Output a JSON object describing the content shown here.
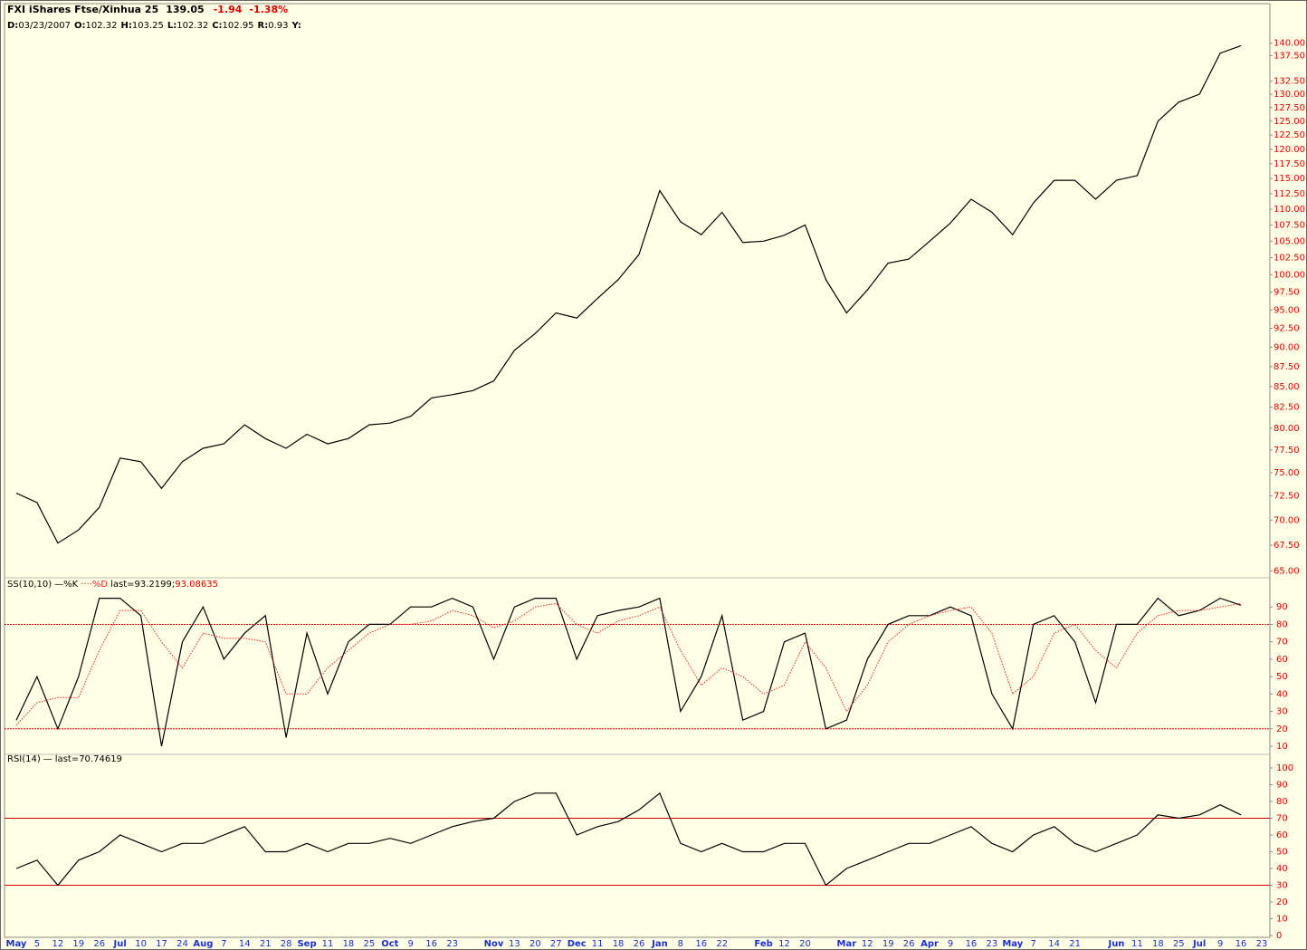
{
  "chart_data": [
    {
      "type": "line",
      "title": "FXI iShares Ftse/Xinhua 25",
      "price": "139.05",
      "change": "-1.94",
      "change_pct": "-1.38%",
      "info": [
        {
          "key": "D:",
          "value": "03/23/2007"
        },
        {
          "key": "O:",
          "value": "102.32"
        },
        {
          "key": "H:",
          "value": "103.25"
        },
        {
          "key": "L:",
          "value": "102.32"
        },
        {
          "key": "C:",
          "value": "102.95"
        },
        {
          "key": "R:",
          "value": "0.93"
        },
        {
          "key": "Y:"
        }
      ],
      "log_scale": true,
      "ylim": [
        64.2,
        148.1
      ],
      "yticks": [
        {
          "value": 65,
          "label": "65.00"
        },
        {
          "value": 67.5,
          "label": "67.50"
        },
        {
          "value": 70,
          "label": "70.00"
        },
        {
          "value": 72.5,
          "label": "72.50"
        },
        {
          "value": 75,
          "label": "75.00"
        },
        {
          "value": 77.5,
          "label": "77.50"
        },
        {
          "value": 80,
          "label": "80.00"
        },
        {
          "value": 82.5,
          "label": "82.50"
        },
        {
          "value": 85,
          "label": "85.00"
        },
        {
          "value": 87.5,
          "label": "87.50"
        },
        {
          "value": 90,
          "label": "90.00"
        },
        {
          "value": 92.5,
          "label": "92.50"
        },
        {
          "value": 95,
          "label": "95.00"
        },
        {
          "value": 97.5,
          "label": "97.50"
        },
        {
          "value": 100,
          "label": "100.00"
        },
        {
          "value": 102.5,
          "label": "102.50"
        },
        {
          "value": 105,
          "label": "105.00"
        },
        {
          "value": 107.5,
          "label": "107.50"
        },
        {
          "value": 110,
          "label": "110.00"
        },
        {
          "value": 112.5,
          "label": "112.50"
        },
        {
          "value": 115,
          "label": "115.00"
        },
        {
          "value": 117.5,
          "label": "117.50"
        },
        {
          "value": 120,
          "label": "120.00"
        },
        {
          "value": 122.5,
          "label": "122.50"
        },
        {
          "value": 125,
          "label": "125.00"
        },
        {
          "value": 127.5,
          "label": "127.50"
        },
        {
          "value": 130,
          "label": "130.00"
        },
        {
          "value": 132.5,
          "label": "132.50"
        },
        {
          "value": 137.5,
          "label": "137.50"
        },
        {
          "value": 140,
          "label": "140.00"
        }
      ],
      "series": [
        {
          "color": "#000000",
          "values": [
            72.8,
            71.8,
            67.7,
            69,
            71.3,
            76.6,
            76.2,
            73.3,
            76.2,
            77.7,
            78.2,
            80.4,
            78.8,
            77.7,
            79.3,
            78.2,
            78.8,
            80.4,
            80.6,
            81.4,
            83.6,
            84,
            84.5,
            85.7,
            89.6,
            91.8,
            94.6,
            93.9,
            96.6,
            99.3,
            103,
            113,
            108,
            106,
            109.5,
            104.8,
            105,
            105.9,
            107.5,
            99.3,
            94.6,
            97.8,
            101.7,
            102.3,
            105,
            107.8,
            111.6,
            109.5,
            106,
            111,
            114.7,
            114.7,
            111.6,
            114.7,
            115.5,
            125,
            128.5,
            130,
            138,
            139.5,
            null
          ]
        }
      ]
    },
    {
      "type": "line",
      "label": "SS(10,10)",
      "notes": [
        "last=93.2199;",
        "93.08635"
      ],
      "ylim": [
        5,
        100
      ],
      "yticks": [
        10,
        20,
        30,
        40,
        50,
        60,
        70,
        80,
        90
      ],
      "hlines": [
        80,
        20
      ],
      "hline_color": "#dd0000",
      "series": [
        {
          "name": "%K",
          "color": "#000000",
          "values": [
            25,
            50,
            20,
            50,
            95,
            95,
            85,
            10,
            70,
            90,
            60,
            75,
            85,
            15,
            75,
            40,
            70,
            80,
            80,
            90,
            90,
            95,
            90,
            60,
            90,
            95,
            95,
            60,
            85,
            88,
            90,
            95,
            30,
            50,
            85,
            25,
            30,
            70,
            75,
            20,
            25,
            60,
            80,
            85,
            85,
            90,
            85,
            40,
            20,
            80,
            85,
            70,
            35,
            80,
            80,
            95,
            85,
            88,
            95,
            91,
            null
          ]
        },
        {
          "name": "%D",
          "color": "#ee2222",
          "dotted": true,
          "values": [
            22,
            35,
            38,
            38,
            65,
            88,
            88,
            70,
            55,
            75,
            72,
            72,
            70,
            40,
            40,
            55,
            65,
            75,
            80,
            80,
            82,
            88,
            85,
            78,
            82,
            90,
            92,
            80,
            75,
            82,
            85,
            90,
            65,
            45,
            55,
            50,
            40,
            45,
            70,
            55,
            30,
            45,
            70,
            80,
            85,
            88,
            90,
            75,
            40,
            50,
            75,
            80,
            65,
            55,
            75,
            85,
            88,
            88,
            90,
            92,
            null
          ]
        }
      ]
    },
    {
      "type": "line",
      "label": "RSI(14)",
      "notes": [
        "last=70.74619"
      ],
      "ylim": [
        0,
        100
      ],
      "yticks": [
        0,
        10,
        20,
        30,
        40,
        50,
        60,
        70,
        80,
        90,
        100
      ],
      "hlines": [
        70,
        30
      ],
      "hline_color": "#cc0000",
      "categories": [
        "May",
        "5",
        "12",
        "19",
        "26",
        "Jul",
        "10",
        "17",
        "24",
        "Aug",
        "7",
        "14",
        "21",
        "28",
        "Sep",
        "11",
        "18",
        "25",
        "Oct",
        "9",
        "16",
        "23",
        null,
        "Nov",
        "13",
        "20",
        "27",
        "Dec",
        "11",
        "18",
        "26",
        "Jan",
        "8",
        "16",
        "22",
        null,
        "Feb",
        "12",
        "20",
        null,
        "Mar",
        "12",
        "19",
        "26",
        "Apr",
        "9",
        "16",
        "23",
        "May",
        "7",
        "14",
        "21",
        null,
        "Jun",
        "11",
        "18",
        "25",
        "Jul",
        "9",
        "16",
        "23"
      ],
      "series": [
        {
          "color": "#000000",
          "values": [
            40,
            45,
            30,
            45,
            50,
            60,
            55,
            50,
            55,
            55,
            60,
            65,
            50,
            50,
            55,
            50,
            55,
            55,
            58,
            55,
            60,
            65,
            68,
            70,
            80,
            85,
            85,
            60,
            65,
            68,
            75,
            85,
            55,
            50,
            55,
            50,
            50,
            55,
            55,
            30,
            40,
            45,
            50,
            55,
            55,
            60,
            65,
            55,
            50,
            60,
            65,
            55,
            50,
            55,
            60,
            72,
            70,
            72,
            78,
            72,
            null
          ]
        }
      ]
    }
  ]
}
